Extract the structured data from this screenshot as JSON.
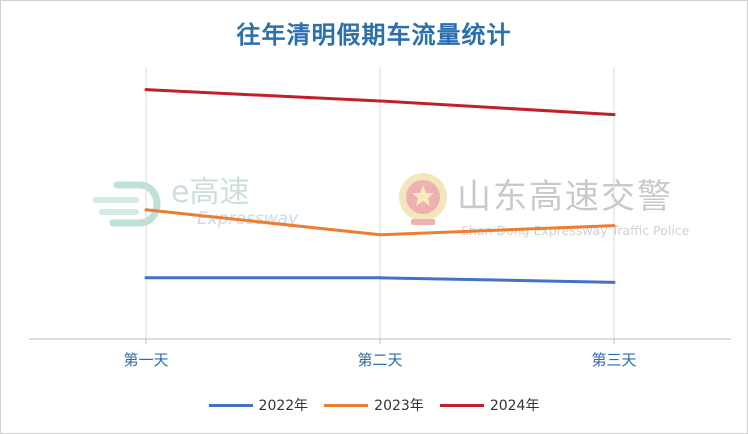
{
  "chart_data": {
    "type": "line",
    "title": "往年清明假期车流量统计",
    "categories": [
      "第一天",
      "第二天",
      "第三天"
    ],
    "series": [
      {
        "name": "2022年",
        "color": "#4472c4",
        "values": [
          27,
          27,
          25
        ]
      },
      {
        "name": "2023年",
        "color": "#ed7d31",
        "values": [
          57,
          46,
          50
        ]
      },
      {
        "name": "2024年",
        "color": "#c0202a",
        "values": [
          110,
          105,
          99
        ]
      }
    ],
    "ylim": [
      0,
      120
    ],
    "grid": "vertical",
    "legend_position": "bottom"
  },
  "watermarks": {
    "left": {
      "main": "e高速",
      "sub": "Expressway",
      "icon": "expressway-logo-icon"
    },
    "right": {
      "main": "山东高速交警",
      "sub": "Shan Dong Expressway Traffic Police",
      "icon": "police-emblem-icon"
    }
  }
}
